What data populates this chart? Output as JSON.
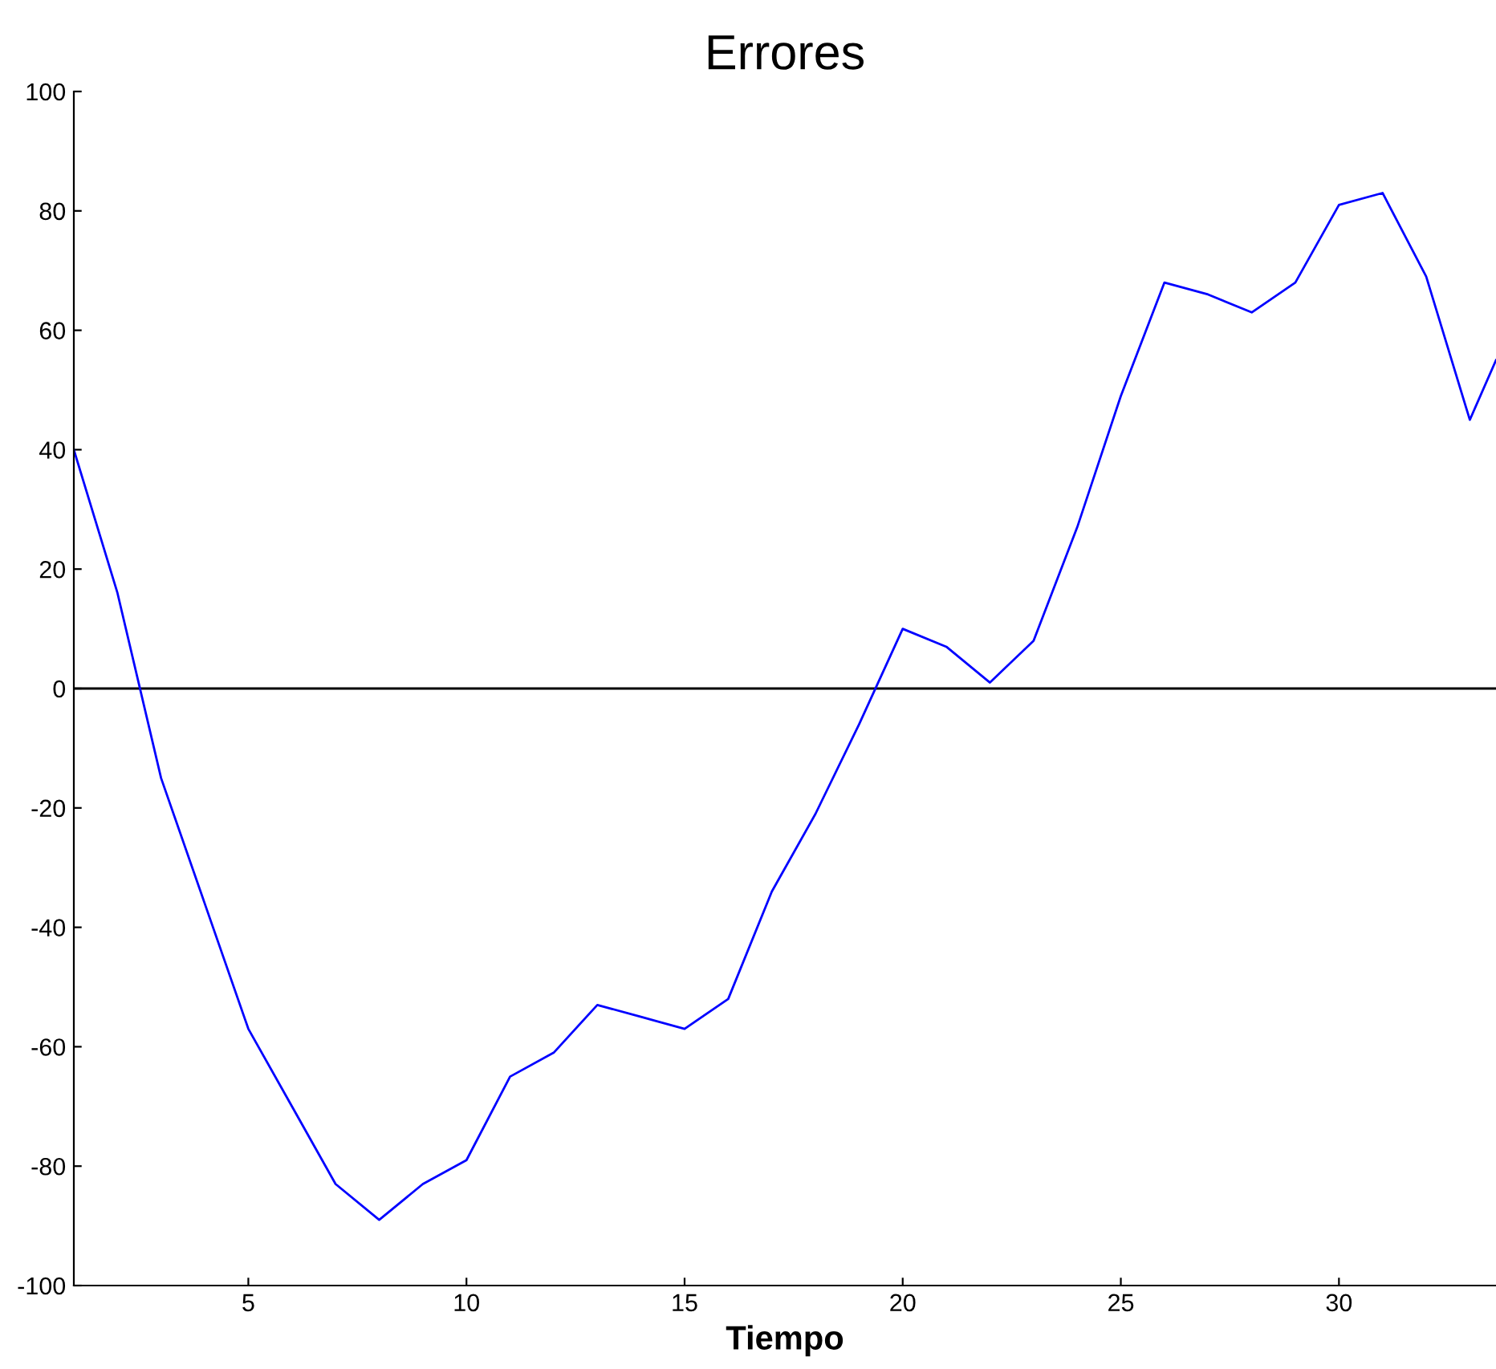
{
  "chart_data": {
    "type": "line",
    "title": "Errores",
    "xlabel": "Tiempo",
    "x": [
      1,
      2,
      3,
      4,
      5,
      6,
      7,
      8,
      9,
      10,
      11,
      12,
      13,
      14,
      15,
      16,
      17,
      18,
      19,
      20,
      21,
      22,
      23,
      24,
      25,
      26,
      27,
      28,
      29,
      30,
      31,
      32,
      33,
      33.6
    ],
    "series": [
      {
        "color": "#0000ff",
        "values": [
          40,
          16,
          -15,
          -36,
          -57,
          -70,
          -83,
          -89,
          -83,
          -79,
          -65,
          -61,
          -53,
          -55,
          -57,
          -52,
          -34,
          -21,
          -6,
          10,
          7,
          1,
          8,
          27,
          49,
          68,
          66,
          63,
          68,
          81,
          83,
          69,
          45,
          55
        ]
      }
    ],
    "xlim": [
      1,
      33.6
    ],
    "ylim": [
      -100,
      100
    ],
    "xticks": [
      5,
      10,
      15,
      20,
      25,
      30
    ],
    "yticks": [
      -100,
      -80,
      -60,
      -40,
      -20,
      0,
      20,
      40,
      60,
      80,
      100
    ],
    "ref_lines": [
      {
        "axis": "y",
        "value": 0,
        "color": "#000000"
      }
    ],
    "grid": false,
    "legend": false,
    "marker": "none",
    "line_style": "solid"
  }
}
